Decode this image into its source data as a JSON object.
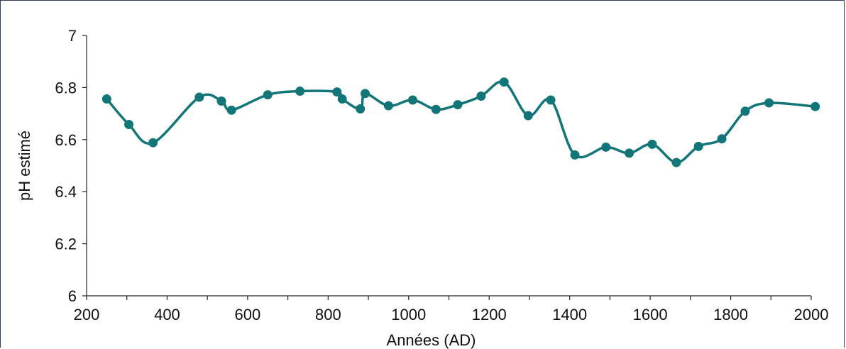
{
  "chart_data": {
    "type": "line",
    "title": "",
    "xlabel": "Années (AD)",
    "ylabel": "pH estimé",
    "xlim": [
      200,
      2000
    ],
    "ylim": [
      6,
      7
    ],
    "xticks": [
      200,
      400,
      600,
      800,
      1000,
      1200,
      1400,
      1600,
      1800,
      2000
    ],
    "yticks": [
      6,
      6.2,
      6.4,
      6.6,
      6.8,
      7
    ],
    "ytick_labels": [
      "6",
      "6.2",
      "6.4",
      "6.6",
      "6.8",
      "7"
    ],
    "grid": false,
    "legend": "none",
    "smooth": true,
    "color": "#127578",
    "series": [
      {
        "x": [
          250,
          305,
          365,
          480,
          535,
          560,
          650,
          730,
          822,
          835,
          880,
          892,
          950,
          1010,
          1068,
          1122,
          1180,
          1237,
          1297,
          1353,
          1413,
          1490,
          1548,
          1605,
          1665,
          1720,
          1778,
          1836,
          1895,
          2010
        ],
        "y": [
          6.756,
          6.658,
          6.588,
          6.763,
          6.748,
          6.713,
          6.772,
          6.786,
          6.783,
          6.756,
          6.718,
          6.777,
          6.73,
          6.752,
          6.716,
          6.734,
          6.767,
          6.821,
          6.692,
          6.752,
          6.541,
          6.571,
          6.548,
          6.582,
          6.512,
          6.574,
          6.603,
          6.709,
          6.741,
          6.727
        ]
      }
    ]
  }
}
